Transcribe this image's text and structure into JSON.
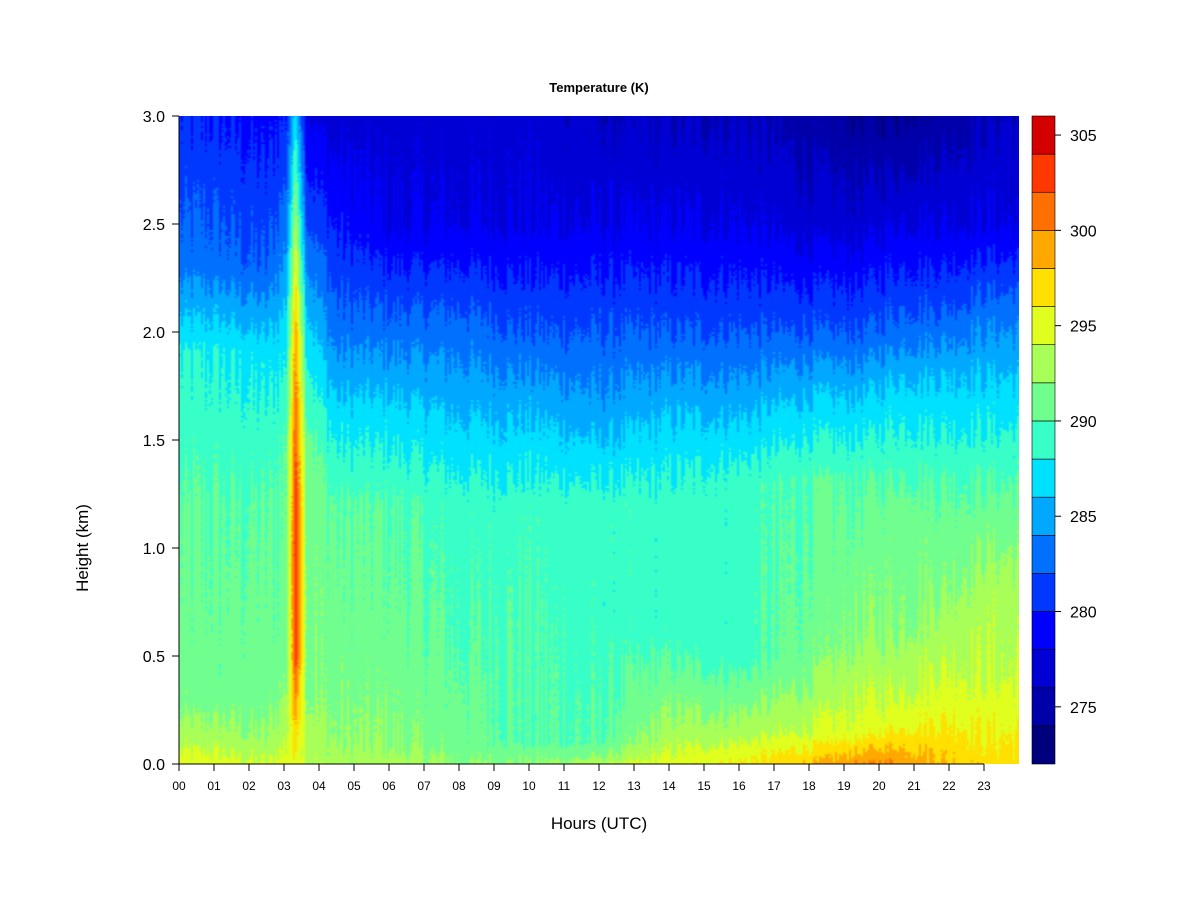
{
  "chart_data": {
    "type": "heatmap",
    "title": "Temperature (K)",
    "xlabel": "Hours (UTC)",
    "ylabel": "Height (km)",
    "x_ticks": [
      "00",
      "01",
      "02",
      "03",
      "04",
      "05",
      "06",
      "07",
      "08",
      "09",
      "10",
      "11",
      "12",
      "13",
      "14",
      "15",
      "16",
      "17",
      "18",
      "19",
      "20",
      "21",
      "22",
      "23"
    ],
    "x_range": [
      0,
      24
    ],
    "y_ticks": [
      "0.0",
      "0.5",
      "1.0",
      "1.5",
      "2.0",
      "2.5",
      "3.0"
    ],
    "y_range": [
      0,
      3.0
    ],
    "colorbar": {
      "ticks": [
        "275",
        "280",
        "285",
        "290",
        "295",
        "300",
        "305"
      ],
      "range": [
        272,
        306
      ],
      "levels": [
        272,
        274,
        276,
        278,
        280,
        282,
        284,
        286,
        288,
        290,
        292,
        294,
        296,
        298,
        300,
        302,
        304,
        306
      ],
      "colors": [
        "#00007F",
        "#0000AA",
        "#0000D4",
        "#0000FF",
        "#0038FF",
        "#0070FF",
        "#00A8FF",
        "#00E0FF",
        "#38FFC7",
        "#70FF8F",
        "#A8FF57",
        "#E0FF1F",
        "#FFE000",
        "#FFA800",
        "#FF7000",
        "#FF3800",
        "#D40000",
        "#7F0000"
      ]
    },
    "profiles": [
      {
        "hour": 0.0,
        "values": [
          [
            0.0,
            295
          ],
          [
            0.12,
            293
          ],
          [
            0.3,
            291
          ],
          [
            1.2,
            290
          ],
          [
            1.9,
            288
          ],
          [
            2.3,
            283
          ],
          [
            3.0,
            280
          ]
        ]
      },
      {
        "hour": 1.0,
        "values": [
          [
            0.0,
            295
          ],
          [
            0.12,
            293
          ],
          [
            0.3,
            291
          ],
          [
            1.2,
            290
          ],
          [
            1.9,
            288
          ],
          [
            2.3,
            283
          ],
          [
            3.0,
            280
          ]
        ]
      },
      {
        "hour": 2.5,
        "values": [
          [
            0.0,
            294
          ],
          [
            0.12,
            292
          ],
          [
            0.3,
            291
          ],
          [
            1.2,
            290
          ],
          [
            1.9,
            287
          ],
          [
            2.3,
            282
          ],
          [
            3.0,
            279
          ]
        ]
      },
      {
        "hour": 3.05,
        "values": [
          [
            0.0,
            295
          ],
          [
            0.2,
            293
          ],
          [
            0.5,
            291
          ],
          [
            1.5,
            290
          ],
          [
            2.0,
            287
          ],
          [
            2.5,
            283
          ],
          [
            3.0,
            280
          ]
        ]
      },
      {
        "hour": 3.35,
        "values": [
          [
            0.0,
            295
          ],
          [
            0.3,
            300
          ],
          [
            0.5,
            303
          ],
          [
            1.0,
            304
          ],
          [
            1.5,
            302
          ],
          [
            2.0,
            299
          ],
          [
            2.5,
            293
          ],
          [
            3.0,
            287
          ]
        ]
      },
      {
        "hour": 3.65,
        "values": [
          [
            0.0,
            294
          ],
          [
            0.3,
            292
          ],
          [
            0.8,
            292
          ],
          [
            1.5,
            291
          ],
          [
            2.0,
            287
          ],
          [
            2.5,
            282
          ],
          [
            3.0,
            278
          ]
        ]
      },
      {
        "hour": 4.5,
        "values": [
          [
            0.0,
            293
          ],
          [
            0.1,
            292
          ],
          [
            0.5,
            291
          ],
          [
            1.2,
            290
          ],
          [
            1.6,
            287
          ],
          [
            2.0,
            283
          ],
          [
            2.6,
            279
          ],
          [
            3.0,
            277
          ]
        ]
      },
      {
        "hour": 6.0,
        "values": [
          [
            0.0,
            293
          ],
          [
            0.1,
            292
          ],
          [
            0.5,
            291
          ],
          [
            1.2,
            290
          ],
          [
            1.6,
            287
          ],
          [
            2.0,
            283
          ],
          [
            2.5,
            278
          ],
          [
            3.0,
            277
          ]
        ]
      },
      {
        "hour": 8.0,
        "values": [
          [
            0.0,
            292
          ],
          [
            0.1,
            291
          ],
          [
            0.5,
            290
          ],
          [
            1.2,
            289
          ],
          [
            1.6,
            286
          ],
          [
            2.0,
            283
          ],
          [
            2.5,
            278
          ],
          [
            3.0,
            277
          ]
        ]
      },
      {
        "hour": 10.0,
        "values": [
          [
            0.0,
            292
          ],
          [
            0.1,
            290
          ],
          [
            0.6,
            290
          ],
          [
            1.2,
            289
          ],
          [
            1.6,
            286
          ],
          [
            2.0,
            282
          ],
          [
            2.5,
            278
          ],
          [
            3.0,
            277
          ]
        ]
      },
      {
        "hour": 12.0,
        "values": [
          [
            0.0,
            293
          ],
          [
            0.1,
            290
          ],
          [
            0.6,
            289
          ],
          [
            1.2,
            289
          ],
          [
            1.6,
            285
          ],
          [
            2.0,
            282
          ],
          [
            2.5,
            278
          ],
          [
            3.0,
            276
          ]
        ]
      },
      {
        "hour": 14.0,
        "values": [
          [
            0.0,
            295
          ],
          [
            0.12,
            293
          ],
          [
            0.6,
            289
          ],
          [
            1.2,
            289
          ],
          [
            1.6,
            286
          ],
          [
            2.0,
            282
          ],
          [
            2.5,
            278
          ],
          [
            3.0,
            276
          ]
        ]
      },
      {
        "hour": 16.0,
        "values": [
          [
            0.0,
            296
          ],
          [
            0.15,
            293
          ],
          [
            0.5,
            289
          ],
          [
            1.3,
            289
          ],
          [
            1.6,
            286
          ],
          [
            2.0,
            282
          ],
          [
            2.5,
            278
          ],
          [
            3.0,
            276
          ]
        ]
      },
      {
        "hour": 18.0,
        "values": [
          [
            0.0,
            298
          ],
          [
            0.15,
            294
          ],
          [
            0.5,
            291
          ],
          [
            1.3,
            290
          ],
          [
            1.7,
            286
          ],
          [
            2.0,
            282
          ],
          [
            2.5,
            277
          ],
          [
            3.0,
            275
          ]
        ]
      },
      {
        "hour": 19.5,
        "values": [
          [
            0.0,
            300
          ],
          [
            0.15,
            295
          ],
          [
            0.6,
            292
          ],
          [
            1.3,
            290
          ],
          [
            1.7,
            286
          ],
          [
            2.0,
            282
          ],
          [
            2.5,
            277
          ],
          [
            3.0,
            274
          ]
        ]
      },
      {
        "hour": 20.5,
        "values": [
          [
            0.0,
            300
          ],
          [
            0.2,
            295
          ],
          [
            0.6,
            292
          ],
          [
            1.2,
            291
          ],
          [
            1.7,
            287
          ],
          [
            2.0,
            283
          ],
          [
            2.5,
            278
          ],
          [
            3.0,
            274
          ]
        ]
      },
      {
        "hour": 22.0,
        "values": [
          [
            0.0,
            298
          ],
          [
            0.3,
            295
          ],
          [
            0.8,
            292
          ],
          [
            1.3,
            290
          ],
          [
            1.8,
            286
          ],
          [
            2.1,
            282
          ],
          [
            2.5,
            278
          ],
          [
            3.0,
            275
          ]
        ]
      },
      {
        "hour": 23.0,
        "values": [
          [
            0.0,
            297
          ],
          [
            0.4,
            294
          ],
          [
            0.8,
            293
          ],
          [
            1.3,
            290
          ],
          [
            1.8,
            286
          ],
          [
            2.1,
            283
          ],
          [
            2.5,
            278
          ],
          [
            3.0,
            276
          ]
        ]
      },
      {
        "hour": 24.0,
        "values": [
          [
            0.0,
            297
          ],
          [
            0.4,
            294
          ],
          [
            0.8,
            293
          ],
          [
            1.3,
            290
          ],
          [
            1.8,
            286
          ],
          [
            2.1,
            283
          ],
          [
            2.5,
            278
          ],
          [
            3.0,
            276
          ]
        ]
      }
    ]
  }
}
